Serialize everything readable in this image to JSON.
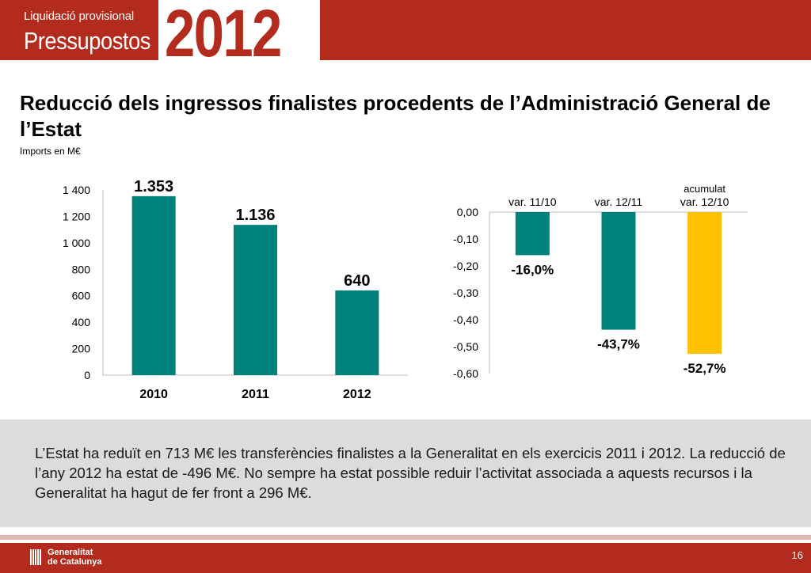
{
  "header": {
    "small_label": "Liquidació provisional",
    "big_label": "Pressupostos",
    "year": "2012"
  },
  "title": "Reducció dels ingressos finalistes procedents de l’Administració General de l’Estat",
  "subtitle": "Imports en M€",
  "chart_data": [
    {
      "type": "bar",
      "categories": [
        "2010",
        "2011",
        "2012"
      ],
      "values": [
        1353,
        1136,
        640
      ],
      "data_labels": [
        "1.353",
        "1.136",
        "640"
      ],
      "y_ticks": [
        "0",
        "200",
        "400",
        "600",
        "800",
        "1 000",
        "1 200",
        "1 400"
      ],
      "ylim": [
        0,
        1400
      ],
      "grid": false,
      "color": "#00827c"
    },
    {
      "type": "bar",
      "categories": [
        "var. 11/10",
        "var. 12/11",
        "var. 12/10"
      ],
      "category_prefix": [
        "",
        "",
        "acumulat"
      ],
      "values": [
        -0.16,
        -0.437,
        -0.527
      ],
      "data_labels": [
        "-16,0%",
        "-43,7%",
        "-52,7%"
      ],
      "y_ticks": [
        "0,00",
        "-0,10",
        "-0,20",
        "-0,30",
        "-0,40",
        "-0,50",
        "-0,60"
      ],
      "ylim": [
        -0.6,
        0
      ],
      "grid": false,
      "colors": [
        "#00827c",
        "#00827c",
        "#ffc000"
      ]
    }
  ],
  "note": "L’Estat ha reduït en 713 M€ les transferències finalistes a la Generalitat en els exercicis 2011 i 2012. La reducció de l’any 2012 ha estat de -496 M€. No sempre ha estat possible reduir l’activitat associada a aquests recursos i la Generalitat ha hagut de fer front a 296 M€.",
  "footer": {
    "org_line1": "Generalitat",
    "org_line2": "de Catalunya",
    "page_number": "16"
  }
}
